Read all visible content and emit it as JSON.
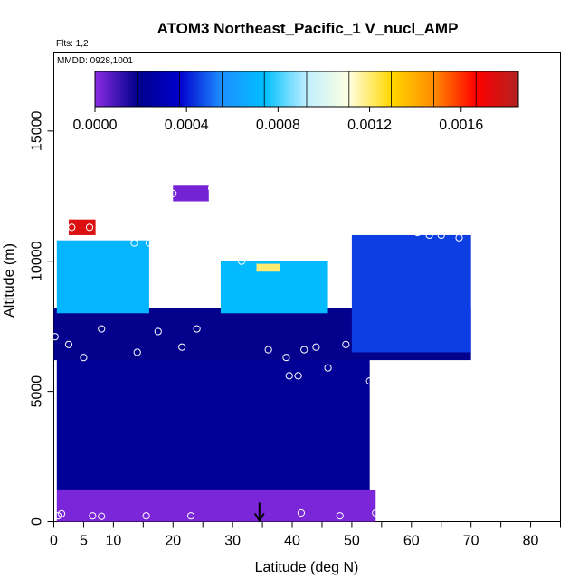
{
  "chart_data": {
    "type": "heatmap",
    "title": "ATOM3 Northeast_Pacific_1 V_nucl_AMP",
    "flights_label": "Flts: 1,2",
    "mmdd_label": "MMDD: 0928,1001",
    "xlabel": "Latitude (deg N)",
    "ylabel": "Altitude (m)",
    "xlim": [
      0,
      85
    ],
    "ylim": [
      0,
      18000
    ],
    "x_ticks": [
      0,
      5,
      10,
      20,
      30,
      40,
      50,
      60,
      70,
      80
    ],
    "x_tick_labels": [
      "0",
      "5",
      "10",
      "20",
      "30",
      "40",
      "50",
      "60",
      "70",
      "80"
    ],
    "x_minor_ticks": [
      15,
      25,
      35,
      45,
      55,
      65,
      75,
      85
    ],
    "y_ticks": [
      0,
      5000,
      10000,
      15000
    ],
    "y_tick_labels": [
      "0",
      "5000",
      "10000",
      "15000"
    ],
    "colorbar": {
      "range": [
        0,
        0.00185
      ],
      "tick_values": [
        0,
        0.0004,
        0.0008,
        0.0012,
        0.0016
      ],
      "tick_labels": [
        "0.0000",
        "0.0004",
        "0.0008",
        "0.0012",
        "0.0016"
      ],
      "colors": [
        "#8a2be2",
        "#00008b",
        "#0000cd",
        "#1e90ff",
        "#00bfff",
        "#bfefff",
        "#ffffe0",
        "#ffd700",
        "#ff8c00",
        "#ff0000",
        "#b22222"
      ]
    },
    "arrow_latitude": 34.5,
    "regions": [
      {
        "name": "low-altitude-band",
        "lat_min": 0.5,
        "lat_max": 54,
        "alt_min": 0,
        "alt_max": 1200,
        "value": 2e-05
      },
      {
        "name": "lower-troposphere",
        "lat_min": 0.5,
        "lat_max": 53,
        "alt_min": 1200,
        "alt_max": 7500,
        "value": 0.00022
      },
      {
        "name": "mid-troposphere",
        "lat_min": 0,
        "lat_max": 70,
        "alt_min": 6200,
        "alt_max": 8200,
        "value": 0.00018
      },
      {
        "name": "upper-west-plume",
        "lat_min": 0.5,
        "lat_max": 16,
        "alt_min": 8000,
        "alt_max": 10800,
        "value": 0.0007
      },
      {
        "name": "upper-west-peak",
        "lat_min": 2.5,
        "lat_max": 7,
        "alt_min": 11000,
        "alt_max": 11600,
        "value": 0.00175
      },
      {
        "name": "central-plume",
        "lat_min": 28,
        "lat_max": 46,
        "alt_min": 8000,
        "alt_max": 10000,
        "value": 0.00072
      },
      {
        "name": "central-plume-core",
        "lat_min": 34,
        "lat_max": 38,
        "alt_min": 9600,
        "alt_max": 9900,
        "value": 0.0012
      },
      {
        "name": "north-upper",
        "lat_min": 50,
        "lat_max": 70,
        "alt_min": 6500,
        "alt_max": 11000,
        "value": 0.00045
      },
      {
        "name": "top-cap",
        "lat_min": 20,
        "lat_max": 26,
        "alt_min": 12300,
        "alt_max": 12900,
        "value": 3e-05
      }
    ],
    "points": [
      {
        "lat": 0.2,
        "alt": 7100
      },
      {
        "lat": 1.3,
        "alt": 300
      },
      {
        "lat": 0.7,
        "alt": 220
      },
      {
        "lat": 2.5,
        "alt": 6800
      },
      {
        "lat": 5,
        "alt": 6300
      },
      {
        "lat": 8,
        "alt": 7400
      },
      {
        "lat": 6,
        "alt": 11300
      },
      {
        "lat": 3,
        "alt": 11300
      },
      {
        "lat": 11,
        "alt": 11100
      },
      {
        "lat": 13.5,
        "alt": 10700
      },
      {
        "lat": 16,
        "alt": 10700
      },
      {
        "lat": 19,
        "alt": 10700
      },
      {
        "lat": 22,
        "alt": 10700
      },
      {
        "lat": 24,
        "alt": 10600
      },
      {
        "lat": 27,
        "alt": 10600
      },
      {
        "lat": 29.5,
        "alt": 10500
      },
      {
        "lat": 31.5,
        "alt": 10000
      },
      {
        "lat": 38,
        "alt": 10200
      },
      {
        "lat": 40,
        "alt": 10300
      },
      {
        "lat": 45,
        "alt": 10800
      },
      {
        "lat": 58,
        "alt": 11200
      },
      {
        "lat": 61,
        "alt": 11100
      },
      {
        "lat": 63,
        "alt": 11000
      },
      {
        "lat": 65,
        "alt": 11000
      },
      {
        "lat": 68,
        "alt": 10900
      },
      {
        "lat": 20,
        "alt": 12600
      },
      {
        "lat": 26.5,
        "alt": 12800
      },
      {
        "lat": 29.5,
        "alt": 12400
      },
      {
        "lat": 14,
        "alt": 6500
      },
      {
        "lat": 17.5,
        "alt": 7300
      },
      {
        "lat": 21.5,
        "alt": 6700
      },
      {
        "lat": 24,
        "alt": 7400
      },
      {
        "lat": 36,
        "alt": 6600
      },
      {
        "lat": 39,
        "alt": 6300
      },
      {
        "lat": 42,
        "alt": 6600
      },
      {
        "lat": 44,
        "alt": 6700
      },
      {
        "lat": 49,
        "alt": 6800
      },
      {
        "lat": 46,
        "alt": 5900
      },
      {
        "lat": 55,
        "alt": 6000
      },
      {
        "lat": 53,
        "alt": 5400
      },
      {
        "lat": 39.5,
        "alt": 5600
      },
      {
        "lat": 41,
        "alt": 5600
      },
      {
        "lat": 71,
        "alt": 6200
      },
      {
        "lat": 6.5,
        "alt": 220
      },
      {
        "lat": 15.5,
        "alt": 220
      },
      {
        "lat": 23,
        "alt": 220
      },
      {
        "lat": 41.5,
        "alt": 330
      },
      {
        "lat": 48,
        "alt": 220
      },
      {
        "lat": 54,
        "alt": 330
      },
      {
        "lat": 8,
        "alt": 200
      }
    ]
  }
}
